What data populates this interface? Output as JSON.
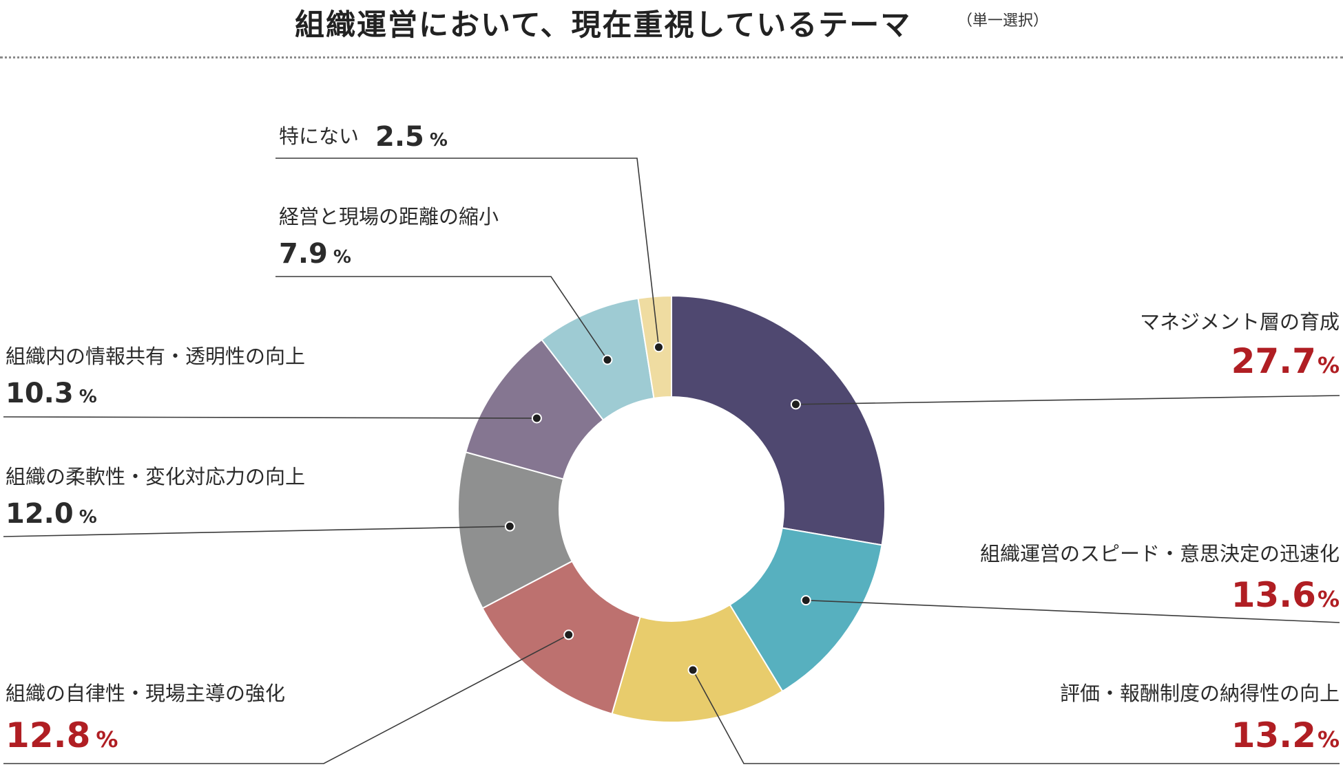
{
  "title": "組織運営において、現在重視しているテーマ",
  "subtitle": "（単一選択）",
  "chart_data": {
    "type": "pie",
    "variant": "donut",
    "unit": "%",
    "slices": [
      {
        "label": "マネジメント層の育成",
        "value": 27.7,
        "color": "#4f4870",
        "highlight": true
      },
      {
        "label": "組織運営のスピード・意思決定の迅速化",
        "value": 13.6,
        "color": "#57b0bf",
        "highlight": true
      },
      {
        "label": "評価・報酬制度の納得性の向上",
        "value": 13.2,
        "color": "#e8cc6c",
        "highlight": true
      },
      {
        "label": "組織の自律性・現場主導の強化",
        "value": 12.8,
        "color": "#bd716f",
        "highlight": true
      },
      {
        "label": "組織の柔軟性・変化対応力の向上",
        "value": 12.0,
        "color": "#8f9090",
        "highlight": false
      },
      {
        "label": "組織内の情報共有・透明性の向上",
        "value": 10.3,
        "color": "#857691",
        "highlight": false
      },
      {
        "label": "経営と現場の距離の縮小",
        "value": 7.9,
        "color": "#9ecbd3",
        "highlight": false
      },
      {
        "label": "特にない",
        "value": 2.5,
        "color": "#efdca1",
        "highlight": false
      }
    ]
  }
}
